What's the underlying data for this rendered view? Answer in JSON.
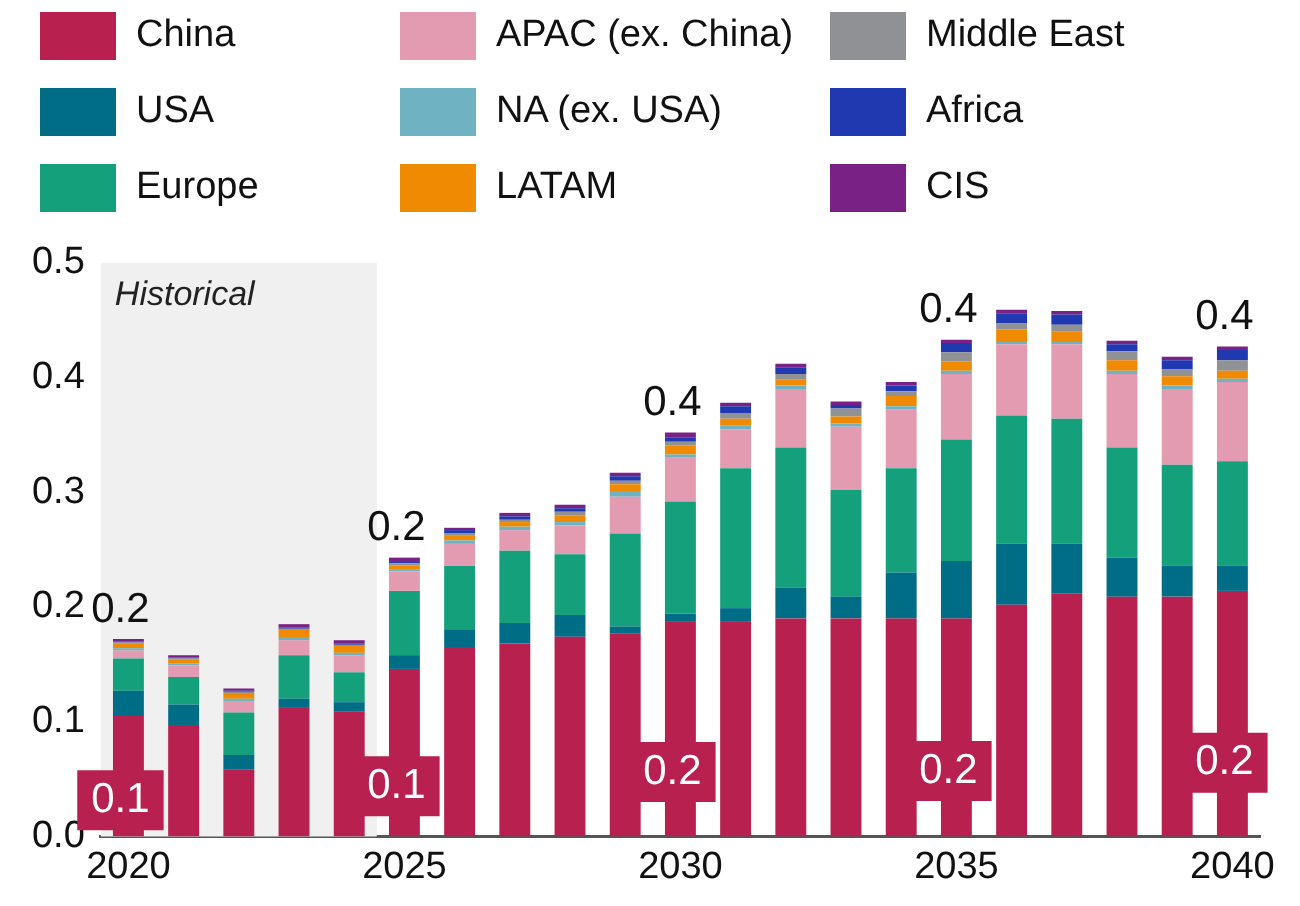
{
  "chart_data": {
    "type": "bar",
    "stacked": true,
    "x": [
      2020,
      2021,
      2022,
      2023,
      2024,
      2025,
      2026,
      2027,
      2028,
      2029,
      2030,
      2031,
      2032,
      2033,
      2034,
      2035,
      2036,
      2037,
      2038,
      2039,
      2040
    ],
    "xlim": [
      2019.5,
      2040.5
    ],
    "xticks": [
      2020,
      2025,
      2030,
      2035,
      2040
    ],
    "ylim": [
      0,
      0.5
    ],
    "yticks": [
      {
        "value": 0,
        "label": "0.0"
      },
      0.1,
      0.2,
      0.3,
      0.4,
      0.5
    ],
    "grid": false,
    "legend": "top",
    "series": [
      {
        "name": "China",
        "color": "#b8204f",
        "values": [
          0.105,
          0.097,
          0.058,
          0.112,
          0.109,
          0.146,
          0.165,
          0.168,
          0.174,
          0.177,
          0.187,
          0.187,
          0.19,
          0.19,
          0.19,
          0.19,
          0.202,
          0.212,
          0.209,
          0.209,
          0.214
        ],
        "value_labels": [
          "0.1",
          null,
          null,
          null,
          null,
          "0.1",
          null,
          null,
          null,
          null,
          "0.2",
          null,
          null,
          null,
          null,
          "0.2",
          null,
          null,
          null,
          null,
          "0.2"
        ]
      },
      {
        "name": "USA",
        "color": "#006d87",
        "values": [
          0.022,
          0.018,
          0.013,
          0.008,
          0.008,
          0.012,
          0.015,
          0.018,
          0.019,
          0.006,
          0.007,
          0.012,
          0.027,
          0.019,
          0.04,
          0.05,
          0.053,
          0.043,
          0.034,
          0.027,
          0.022
        ]
      },
      {
        "name": "Europe",
        "color": "#13a07a",
        "values": [
          0.028,
          0.024,
          0.037,
          0.038,
          0.026,
          0.056,
          0.056,
          0.063,
          0.053,
          0.081,
          0.098,
          0.122,
          0.122,
          0.093,
          0.091,
          0.106,
          0.112,
          0.109,
          0.096,
          0.088,
          0.091
        ]
      },
      {
        "name": "APAC (ex. China)",
        "color": "#e29bb0",
        "values": [
          0.007,
          0.01,
          0.01,
          0.013,
          0.015,
          0.017,
          0.019,
          0.018,
          0.025,
          0.032,
          0.038,
          0.034,
          0.051,
          0.055,
          0.051,
          0.057,
          0.062,
          0.065,
          0.064,
          0.066,
          0.069
        ]
      },
      {
        "name": "NA (ex. USA)",
        "color": "#6fb3c2",
        "values": [
          0.002,
          0.002,
          0.002,
          0.002,
          0.002,
          0.002,
          0.003,
          0.003,
          0.003,
          0.005,
          0.003,
          0.003,
          0.003,
          0.003,
          0.003,
          0.003,
          0.002,
          0.002,
          0.003,
          0.003,
          0.003
        ]
      },
      {
        "name": "LATAM",
        "color": "#f08a00",
        "values": [
          0.004,
          0.003,
          0.005,
          0.007,
          0.006,
          0.003,
          0.004,
          0.004,
          0.006,
          0.006,
          0.008,
          0.006,
          0.005,
          0.006,
          0.009,
          0.008,
          0.011,
          0.009,
          0.009,
          0.008,
          0.007
        ]
      },
      {
        "name": "Middle East",
        "color": "#8f9195",
        "values": [
          0.001,
          0.001,
          0.001,
          0.001,
          0.001,
          0.002,
          0.002,
          0.002,
          0.003,
          0.003,
          0.003,
          0.005,
          0.005,
          0.007,
          0.004,
          0.008,
          0.005,
          0.006,
          0.008,
          0.006,
          0.009
        ]
      },
      {
        "name": "Africa",
        "color": "#2038b0",
        "values": [
          0.001,
          0.001,
          0.001,
          0.001,
          0.001,
          0.002,
          0.003,
          0.003,
          0.003,
          0.004,
          0.004,
          0.006,
          0.006,
          0.003,
          0.005,
          0.008,
          0.009,
          0.009,
          0.006,
          0.008,
          0.009
        ]
      },
      {
        "name": "CIS",
        "color": "#7a2185",
        "values": [
          0.002,
          0.002,
          0.002,
          0.003,
          0.003,
          0.003,
          0.002,
          0.003,
          0.003,
          0.003,
          0.004,
          0.003,
          0.003,
          0.003,
          0.003,
          0.003,
          0.003,
          0.003,
          0.003,
          0.003,
          0.003
        ]
      }
    ],
    "totals": [
      "0.2",
      null,
      null,
      null,
      null,
      "0.2",
      null,
      null,
      null,
      null,
      "0.4",
      null,
      null,
      null,
      null,
      "0.4",
      null,
      null,
      null,
      null,
      "0.4"
    ],
    "bands": [
      {
        "axis": "x",
        "from": 2019.5,
        "to": 2024.5,
        "label": "Historical",
        "color": "#f0f0f0"
      }
    ]
  }
}
